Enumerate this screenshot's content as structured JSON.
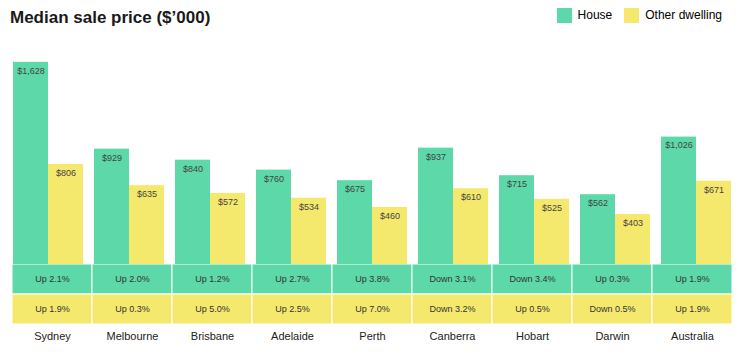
{
  "chart_data": {
    "type": "bar",
    "title": "Median sale price ($’000)",
    "categories": [
      "Sydney",
      "Melbourne",
      "Brisbane",
      "Adelaide",
      "Perth",
      "Canberra",
      "Hobart",
      "Darwin",
      "Australia"
    ],
    "series": [
      {
        "name": "House",
        "color": "#5DD8A8",
        "values": [
          1628,
          929,
          840,
          760,
          675,
          937,
          715,
          562,
          1026
        ],
        "value_labels": [
          "$1,628",
          "$929",
          "$840",
          "$760",
          "$675",
          "$937",
          "$715",
          "$562",
          "$1,026"
        ],
        "annotations": [
          "Up 2.1%",
          "Up 2.0%",
          "Up 1.2%",
          "Up 2.7%",
          "Up 3.8%",
          "Down 3.1%",
          "Down 3.4%",
          "Up 0.3%",
          "Up 1.9%"
        ]
      },
      {
        "name": "Other dwelling",
        "color": "#F5E96D",
        "values": [
          806,
          635,
          572,
          534,
          460,
          610,
          525,
          403,
          671
        ],
        "value_labels": [
          "$806",
          "$635",
          "$572",
          "$534",
          "$460",
          "$610",
          "$525",
          "$403",
          "$671"
        ],
        "annotations": [
          "Up 1.9%",
          "Up 0.3%",
          "Up 5.0%",
          "Up 2.5%",
          "Up 7.0%",
          "Down 3.2%",
          "Up 0.5%",
          "Down 0.5%",
          "Up 1.9%"
        ]
      }
    ],
    "ylim": [
      0,
      1820
    ],
    "grid": false,
    "legend": "upper right",
    "data_labels": true,
    "tick_labels": "x"
  }
}
